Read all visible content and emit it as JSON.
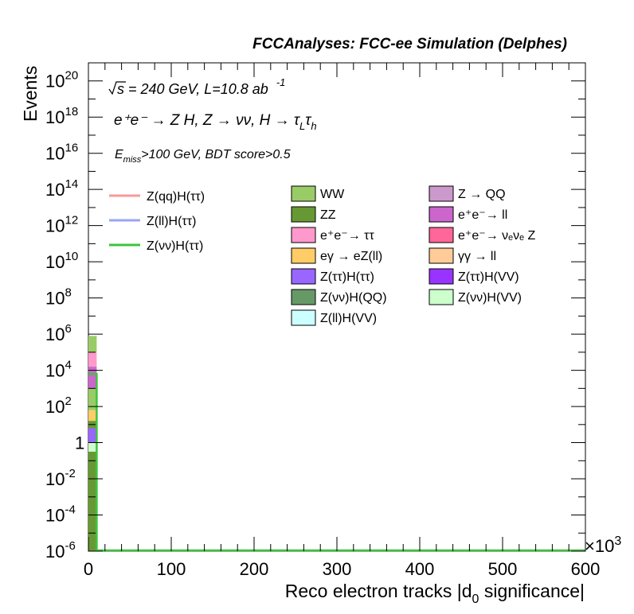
{
  "chart_data": {
    "type": "bar",
    "title": "FCCAnalyses: FCC-ee Simulation (Delphes)",
    "xlabel": "Reco electron tracks |d",
    "xlabel_sub": "0",
    "xlabel_suffix": " significance|",
    "ylabel": "Events",
    "x_multiplier": "×10",
    "x_multiplier_exp": "3",
    "xlim": [
      0,
      600
    ],
    "ylog": true,
    "ylim_exp": [
      -6,
      21
    ],
    "x_ticks": [
      {
        "value": 0,
        "label": "0"
      },
      {
        "value": 100,
        "label": "100"
      },
      {
        "value": 200,
        "label": "200"
      },
      {
        "value": 300,
        "label": "300"
      },
      {
        "value": 400,
        "label": "400"
      },
      {
        "value": 500,
        "label": "500"
      },
      {
        "value": 600,
        "label": "600"
      }
    ],
    "y_ticks": [
      {
        "exp": 20,
        "base": "10",
        "sup": "20"
      },
      {
        "exp": 18,
        "base": "10",
        "sup": "18"
      },
      {
        "exp": 16,
        "base": "10",
        "sup": "16"
      },
      {
        "exp": 14,
        "base": "10",
        "sup": "14"
      },
      {
        "exp": 12,
        "base": "10",
        "sup": "12"
      },
      {
        "exp": 10,
        "base": "10",
        "sup": "10"
      },
      {
        "exp": 8,
        "base": "10",
        "sup": "8"
      },
      {
        "exp": 6,
        "base": "10",
        "sup": "6"
      },
      {
        "exp": 4,
        "base": "10",
        "sup": "4"
      },
      {
        "exp": 2,
        "base": "10",
        "sup": "2"
      },
      {
        "exp": 0,
        "base": "1",
        "sup": ""
      },
      {
        "exp": -2,
        "base": "10",
        "sup": "-2"
      },
      {
        "exp": -4,
        "base": "10",
        "sup": "-4"
      },
      {
        "exp": -6,
        "base": "10",
        "sup": "-6"
      }
    ],
    "annotations": {
      "sqrt_s": "s = 240 GeV, L=10.8 ab",
      "lumi_exp": "-1",
      "process": "e⁺e⁻ → Z H, Z → νν, H → τ",
      "process_sub1": "L",
      "process_tau2": "τ",
      "process_sub2": "h",
      "selection": "E",
      "selection_sub": "miss",
      "selection_rest": ">100 GeV, BDT score>0.5"
    },
    "signals": [
      {
        "name": "Z(qq)H(ττ)",
        "color": "#f79a9a"
      },
      {
        "name": "Z(ll)H(ττ)",
        "color": "#9aa4f7"
      },
      {
        "name": "Z(νν)H(ττ)",
        "color": "#3cc43c"
      }
    ],
    "backgrounds": [
      {
        "name": "WW",
        "color": "#99cc66"
      },
      {
        "name": "ZZ",
        "color": "#669933"
      },
      {
        "name": "e⁺e⁻→ ττ",
        "color": "#ff99cc"
      },
      {
        "name": "eγ → eZ(ll)",
        "color": "#ffcc66"
      },
      {
        "name": "Z(ττ)H(ττ)",
        "color": "#9966ff"
      },
      {
        "name": "Z(νν)H(QQ)",
        "color": "#669966"
      },
      {
        "name": "Z(ll)H(VV)",
        "color": "#ccffff"
      },
      {
        "name": "Z → QQ",
        "color": "#cc99cc"
      },
      {
        "name": "e⁺e⁻→ ll",
        "color": "#cc66cc"
      },
      {
        "name": "e⁺e⁻→ νₑνₑ Z",
        "color": "#ff6699"
      },
      {
        "name": "γγ → ll",
        "color": "#ffcc99"
      },
      {
        "name": "Z(ττ)H(VV)",
        "color": "#9933ff"
      },
      {
        "name": "Z(νν)H(VV)",
        "color": "#ccffcc"
      }
    ],
    "stack_bin": {
      "x_range": [
        0,
        10
      ],
      "segments": [
        {
          "color": "#669933",
          "from_exp": -6,
          "to_exp": 1.5
        },
        {
          "color": "#ccffcc",
          "from_exp": -0.5,
          "to_exp": 0
        },
        {
          "color": "#9966ff",
          "from_exp": 0,
          "to_exp": 0.8
        },
        {
          "color": "#ffcc66",
          "from_exp": 1.2,
          "to_exp": 1.8
        },
        {
          "color": "#99cc66",
          "from_exp": 1.8,
          "to_exp": 3.0
        },
        {
          "color": "#cc66cc",
          "from_exp": 3.0,
          "to_exp": 4.2
        },
        {
          "color": "#ff99cc",
          "from_exp": 4.2,
          "to_exp": 5.0
        },
        {
          "color": "#99cc66",
          "from_exp": 5.0,
          "to_exp": 5.9
        }
      ],
      "signal_line_exp": 3.8
    }
  }
}
